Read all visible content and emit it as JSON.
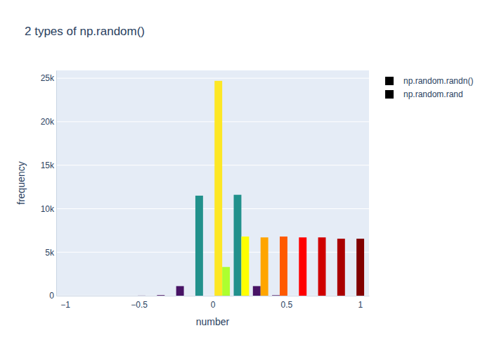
{
  "chart_data": {
    "type": "histogram",
    "title": "2 types of np.random()",
    "x_label": "number",
    "y_label": "frequency",
    "bins": [
      -0.52,
      -0.39,
      -0.26,
      -0.13,
      0,
      0.13,
      0.26,
      0.39,
      0.52,
      0.65,
      0.78,
      0.91,
      1.04
    ],
    "series": [
      {
        "name": "np.random.randn()",
        "color": "#000000",
        "values": [
          10,
          60,
          1100,
          11500,
          24700,
          11600,
          1100,
          50,
          0,
          0,
          0,
          0
        ],
        "colors": [
          "#440154",
          "#440154",
          "#471365",
          "#21918c",
          "#fde725",
          "#21918c",
          "#471365",
          "#440154",
          "#440154",
          "#440154",
          "#440154",
          "#440154"
        ]
      },
      {
        "name": "np.random.rand",
        "color": "#000000",
        "values": [
          0,
          0,
          0,
          0,
          3300,
          6800,
          6700,
          6800,
          6700,
          6700,
          6550,
          6550
        ],
        "colors": [
          "#adff2f",
          "#adff2f",
          "#adff2f",
          "#adff2f",
          "#adff2f",
          "#ffff00",
          "#ffa500",
          "#ff5a00",
          "#ff0000",
          "#d00000",
          "#aa0000",
          "#800000"
        ]
      }
    ],
    "xlim": [
      -1.06,
      1.06
    ],
    "xticks": [
      {
        "value": -1,
        "label": "−1"
      },
      {
        "value": -0.5,
        "label": "−0.5"
      },
      0,
      0.5,
      1
    ],
    "ylim": [
      0,
      25900
    ],
    "yticks": [
      0,
      {
        "value": 5000,
        "label": "5k"
      },
      {
        "value": 10000,
        "label": "10k"
      },
      {
        "value": 15000,
        "label": "15k"
      },
      {
        "value": 20000,
        "label": "20k"
      },
      {
        "value": 25000,
        "label": "25k"
      }
    ],
    "grid": "y",
    "legend": "right"
  }
}
